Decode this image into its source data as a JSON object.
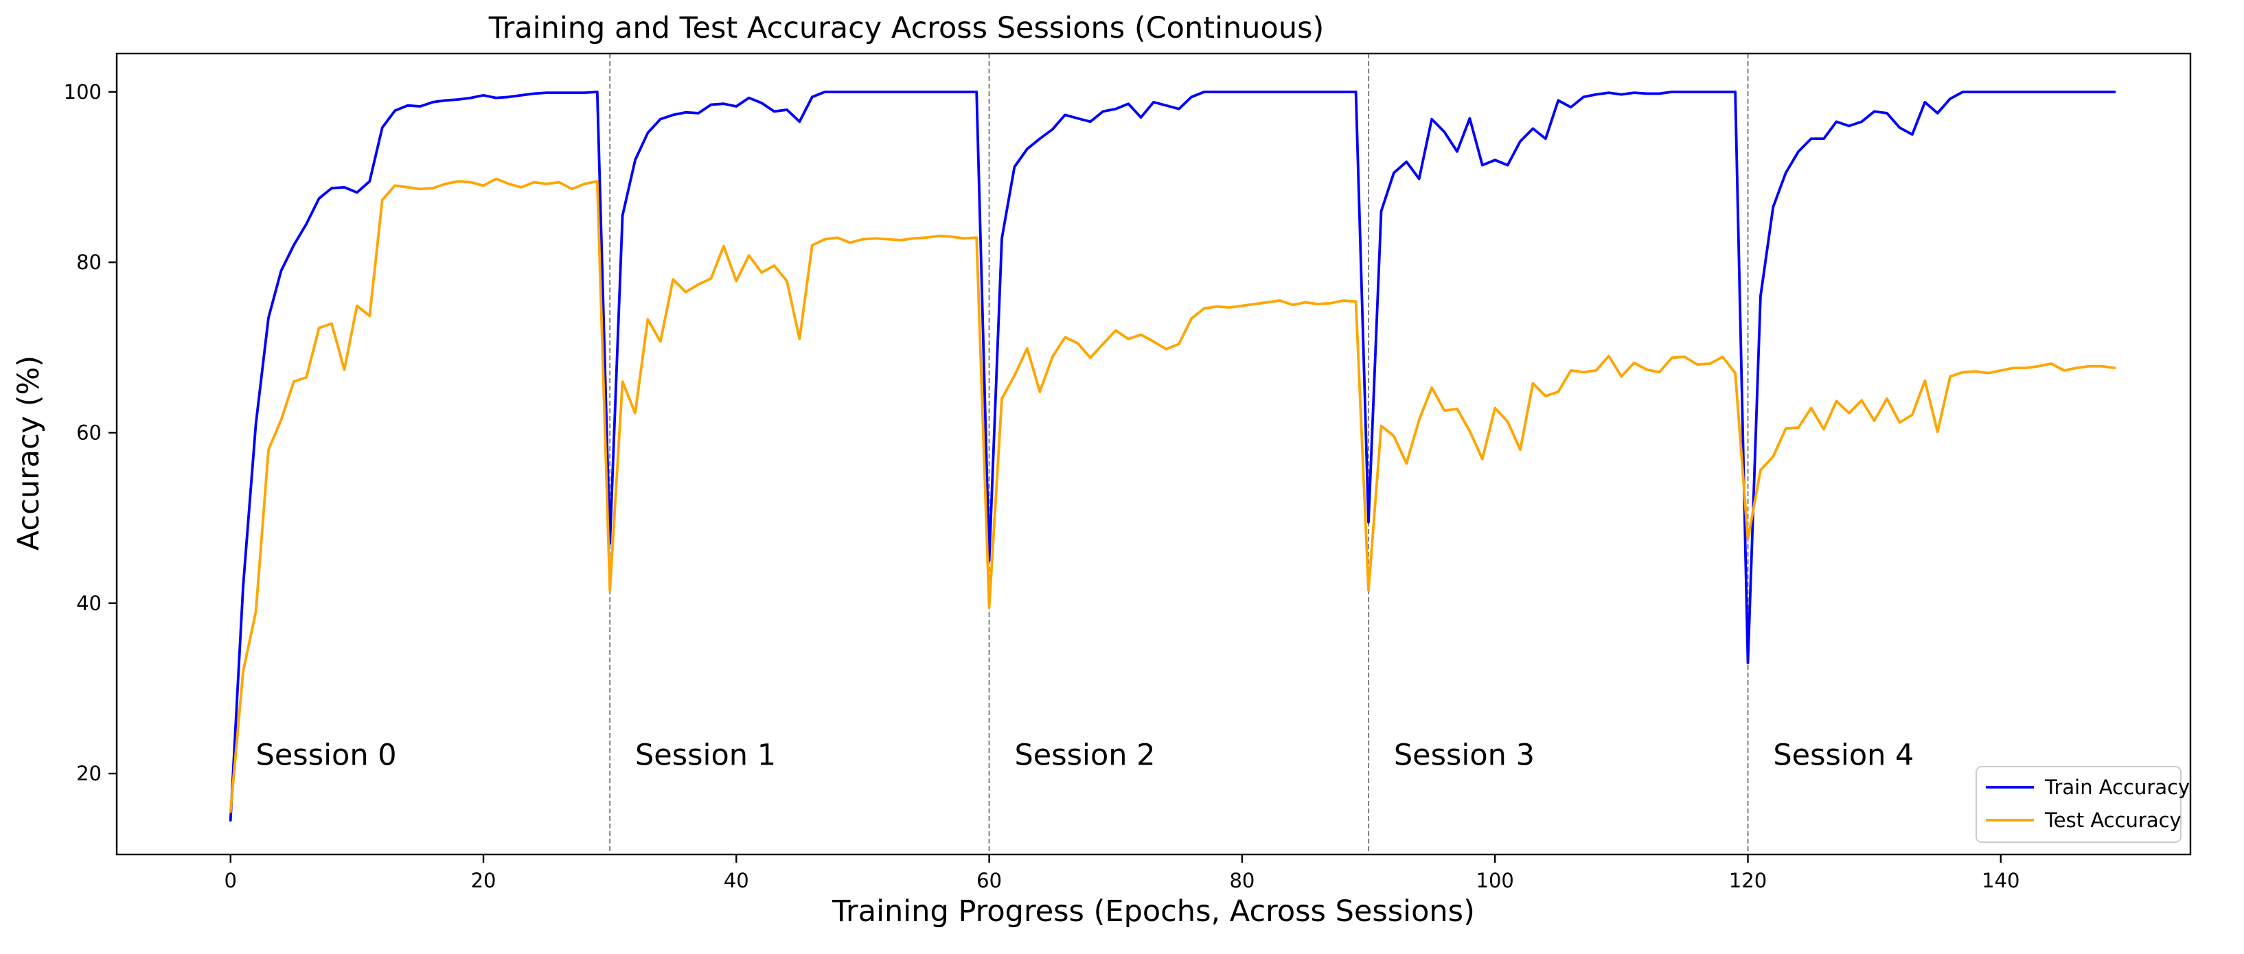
{
  "chart_data": {
    "type": "line",
    "title": "Training and Test Accuracy Across Sessions (Continuous)",
    "xlabel": "Training Progress (Epochs, Across Sessions)",
    "ylabel": "Accuracy (%)",
    "xlim": [
      -9,
      155
    ],
    "ylim": [
      10.5,
      104.5
    ],
    "xticks": [
      0,
      20,
      40,
      60,
      80,
      100,
      120,
      140
    ],
    "yticks": [
      20,
      40,
      60,
      80,
      100
    ],
    "grid": false,
    "legend_position": "bottom-right",
    "session_boundaries": [
      30,
      60,
      90,
      120
    ],
    "session_labels": [
      {
        "text": "Session 0",
        "x": 2,
        "y": 21
      },
      {
        "text": "Session 1",
        "x": 32,
        "y": 21
      },
      {
        "text": "Session 2",
        "x": 62,
        "y": 21
      },
      {
        "text": "Session 3",
        "x": 92,
        "y": 21
      },
      {
        "text": "Session 4",
        "x": 122,
        "y": 21
      }
    ],
    "series": [
      {
        "name": "Train Accuracy",
        "color": "#0000ff",
        "values": [
          14.5,
          42,
          61,
          73.5,
          79,
          82,
          84.5,
          87.5,
          88.7,
          88.8,
          88.2,
          89.5,
          95.8,
          97.8,
          98.4,
          98.3,
          98.8,
          99,
          99.1,
          99.3,
          99.6,
          99.3,
          99.4,
          99.6,
          99.8,
          99.9,
          99.9,
          99.9,
          99.9,
          100,
          47,
          85.5,
          92,
          95.2,
          96.8,
          97.3,
          97.6,
          97.5,
          98.5,
          98.6,
          98.3,
          99.3,
          98.7,
          97.7,
          97.9,
          96.5,
          99.4,
          100,
          100,
          100,
          100,
          100,
          100,
          100,
          100,
          100,
          100,
          100,
          100,
          100,
          45,
          82.8,
          91.2,
          93.3,
          94.5,
          95.6,
          97.3,
          96.9,
          96.5,
          97.7,
          98,
          98.6,
          97,
          98.8,
          98.4,
          98,
          99.4,
          100,
          100,
          100,
          100,
          100,
          100,
          100,
          100,
          100,
          100,
          100,
          100,
          100,
          49.5,
          86,
          90.5,
          91.8,
          89.8,
          96.8,
          95.3,
          93,
          96.9,
          91.4,
          92,
          91.4,
          94.2,
          95.7,
          94.5,
          99,
          98.2,
          99.4,
          99.7,
          99.9,
          99.7,
          99.9,
          99.8,
          99.8,
          100,
          100,
          100,
          100,
          100,
          100,
          33,
          76,
          86.5,
          90.5,
          93,
          94.5,
          94.5,
          96.5,
          96,
          96.5,
          97.7,
          97.5,
          95.8,
          95,
          98.8,
          97.5,
          99.2,
          100,
          100,
          100,
          100,
          100,
          100,
          100,
          100,
          100,
          100,
          100,
          100,
          100
        ]
      },
      {
        "name": "Test Accuracy",
        "color": "#ffa500",
        "values": [
          15.5,
          32,
          39,
          58,
          61.5,
          66,
          66.5,
          72.3,
          72.8,
          67.4,
          74.9,
          73.7,
          87.3,
          89,
          88.8,
          88.6,
          88.7,
          89.2,
          89.5,
          89.4,
          89,
          89.8,
          89.2,
          88.8,
          89.4,
          89.2,
          89.4,
          88.6,
          89.2,
          89.5,
          41.5,
          66,
          62.3,
          73.3,
          70.7,
          78,
          76.5,
          77.4,
          78.1,
          81.9,
          77.8,
          80.8,
          78.8,
          79.6,
          77.8,
          71,
          82,
          82.7,
          82.9,
          82.3,
          82.7,
          82.8,
          82.7,
          82.6,
          82.8,
          82.9,
          83.1,
          83,
          82.8,
          82.9,
          39.5,
          64,
          66.7,
          69.9,
          64.8,
          68.9,
          71.2,
          70.5,
          68.8,
          70.4,
          72,
          71,
          71.5,
          70.7,
          69.8,
          70.4,
          73.4,
          74.6,
          74.8,
          74.7,
          74.9,
          75.1,
          75.3,
          75.5,
          75,
          75.3,
          75.1,
          75.2,
          75.5,
          75.4,
          41.5,
          60.8,
          59.6,
          56.4,
          61.5,
          65.3,
          62.6,
          62.8,
          60.2,
          56.9,
          62.9,
          61.3,
          58,
          65.8,
          64.3,
          64.8,
          67.3,
          67.1,
          67.3,
          69,
          66.6,
          68.2,
          67.4,
          67.1,
          68.8,
          68.9,
          68,
          68.1,
          68.9,
          67,
          47.5,
          55.6,
          57.2,
          60.5,
          60.6,
          62.9,
          60.4,
          63.7,
          62.3,
          63.8,
          61.4,
          64,
          61.2,
          62.1,
          66.1,
          60.1,
          66.6,
          67.1,
          67.2,
          67,
          67.3,
          67.6,
          67.6,
          67.8,
          68.1,
          67.3,
          67.6,
          67.8,
          67.8,
          67.6
        ]
      }
    ]
  }
}
